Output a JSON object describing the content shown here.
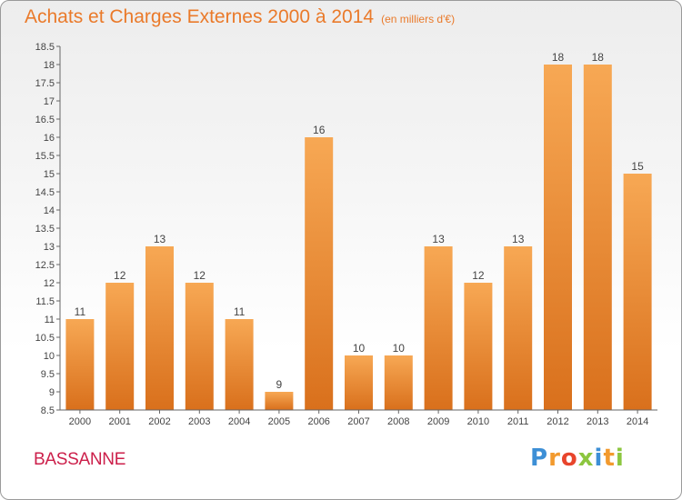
{
  "header": {
    "title": "Achats et Charges Externes 2000 à 2014",
    "unit": "(en milliers d'€)"
  },
  "footer": {
    "town": "BASSANNE",
    "brand_letters": [
      "P",
      "r",
      "o",
      "x",
      "i",
      "t",
      "i"
    ],
    "brand_colors": [
      "#3d8fd6",
      "#f29a2e",
      "#e8452c",
      "#8cc63f",
      "#3d8fd6",
      "#f29a2e",
      "#8cc63f"
    ]
  },
  "chart_data": {
    "type": "bar",
    "title": "Achats et Charges Externes 2000 à 2014",
    "subtitle": "(en milliers d'€)",
    "categories": [
      "2000",
      "2001",
      "2002",
      "2003",
      "2004",
      "2005",
      "2006",
      "2007",
      "2008",
      "2009",
      "2010",
      "2011",
      "2012",
      "2013",
      "2014"
    ],
    "values": [
      11,
      12,
      13,
      12,
      11,
      9,
      16,
      10,
      10,
      13,
      12,
      13,
      18,
      18,
      15
    ],
    "data_labels": [
      "11",
      "12",
      "13",
      "12",
      "11",
      "9",
      "16",
      "10",
      "10",
      "13",
      "12",
      "13",
      "18",
      "18",
      "15"
    ],
    "ylim": [
      8.5,
      18.5
    ],
    "y_ticks": [
      "8.5",
      "9",
      "9.5",
      "10",
      "10.5",
      "11",
      "11.5",
      "12",
      "12.5",
      "13",
      "13.5",
      "14",
      "14.5",
      "15",
      "15.5",
      "16",
      "16.5",
      "17",
      "17.5",
      "18",
      "18.5"
    ],
    "grid": false,
    "legend": "none",
    "colors": {
      "bar_light": "#f7a854",
      "bar_dark": "#d9701c",
      "axis": "#666666",
      "label": "#444444"
    }
  }
}
